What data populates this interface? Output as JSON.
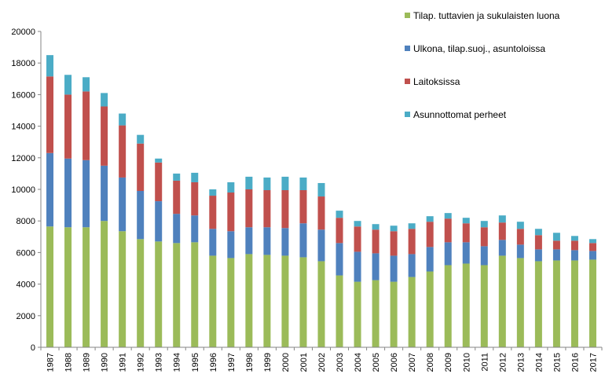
{
  "chart_data": {
    "type": "bar",
    "stacked": true,
    "title": "",
    "xlabel": "",
    "ylabel": "",
    "ylim": [
      0,
      20000
    ],
    "yticks": [
      0,
      2000,
      4000,
      6000,
      8000,
      10000,
      12000,
      14000,
      16000,
      18000,
      20000
    ],
    "grid": false,
    "legend_position": "top-right",
    "categories": [
      "1987",
      "1988",
      "1989",
      "1990",
      "1991",
      "1992",
      "1993",
      "1994",
      "1995",
      "1996",
      "1997",
      "1998",
      "1999",
      "2000",
      "2001",
      "2002",
      "2003",
      "2004",
      "2005",
      "2006",
      "2007",
      "2008",
      "2009",
      "2010",
      "2011",
      "2012",
      "2013",
      "2014",
      "2015",
      "2016",
      "2017"
    ],
    "series": [
      {
        "name": "Tilap. tuttavien ja sukulaisten luona",
        "color": "#9BBB59",
        "values": [
          7650,
          7600,
          7600,
          8000,
          7350,
          6850,
          6700,
          6600,
          6650,
          5800,
          5650,
          5900,
          5850,
          5800,
          5700,
          5450,
          4550,
          4150,
          4250,
          4150,
          4450,
          4800,
          5200,
          5300,
          5200,
          5800,
          5650,
          5450,
          5500,
          5500,
          5550
        ]
      },
      {
        "name": "Ulkona, tilap.suoj., asuntoloissa",
        "color": "#4F81BD",
        "values": [
          4650,
          4350,
          4250,
          3500,
          3400,
          3050,
          2550,
          1850,
          1700,
          1700,
          1700,
          1700,
          1750,
          1750,
          2150,
          2000,
          2050,
          1900,
          1700,
          1650,
          1450,
          1550,
          1450,
          1350,
          1200,
          1000,
          850,
          750,
          700,
          650,
          550
        ]
      },
      {
        "name": "Laitoksissa",
        "color": "#C0504D",
        "values": [
          4850,
          4050,
          4350,
          3750,
          3300,
          3000,
          2450,
          2100,
          2100,
          2100,
          2450,
          2400,
          2350,
          2400,
          2100,
          2100,
          1600,
          1600,
          1500,
          1550,
          1600,
          1600,
          1500,
          1200,
          1200,
          1100,
          1000,
          900,
          550,
          600,
          500
        ]
      },
      {
        "name": "Asunnottomat perheet",
        "color": "#4BACC6",
        "values": [
          1350,
          1250,
          900,
          850,
          750,
          550,
          250,
          450,
          600,
          400,
          650,
          800,
          800,
          850,
          800,
          850,
          450,
          350,
          350,
          350,
          350,
          350,
          350,
          350,
          400,
          450,
          450,
          400,
          500,
          300,
          250
        ]
      }
    ]
  }
}
